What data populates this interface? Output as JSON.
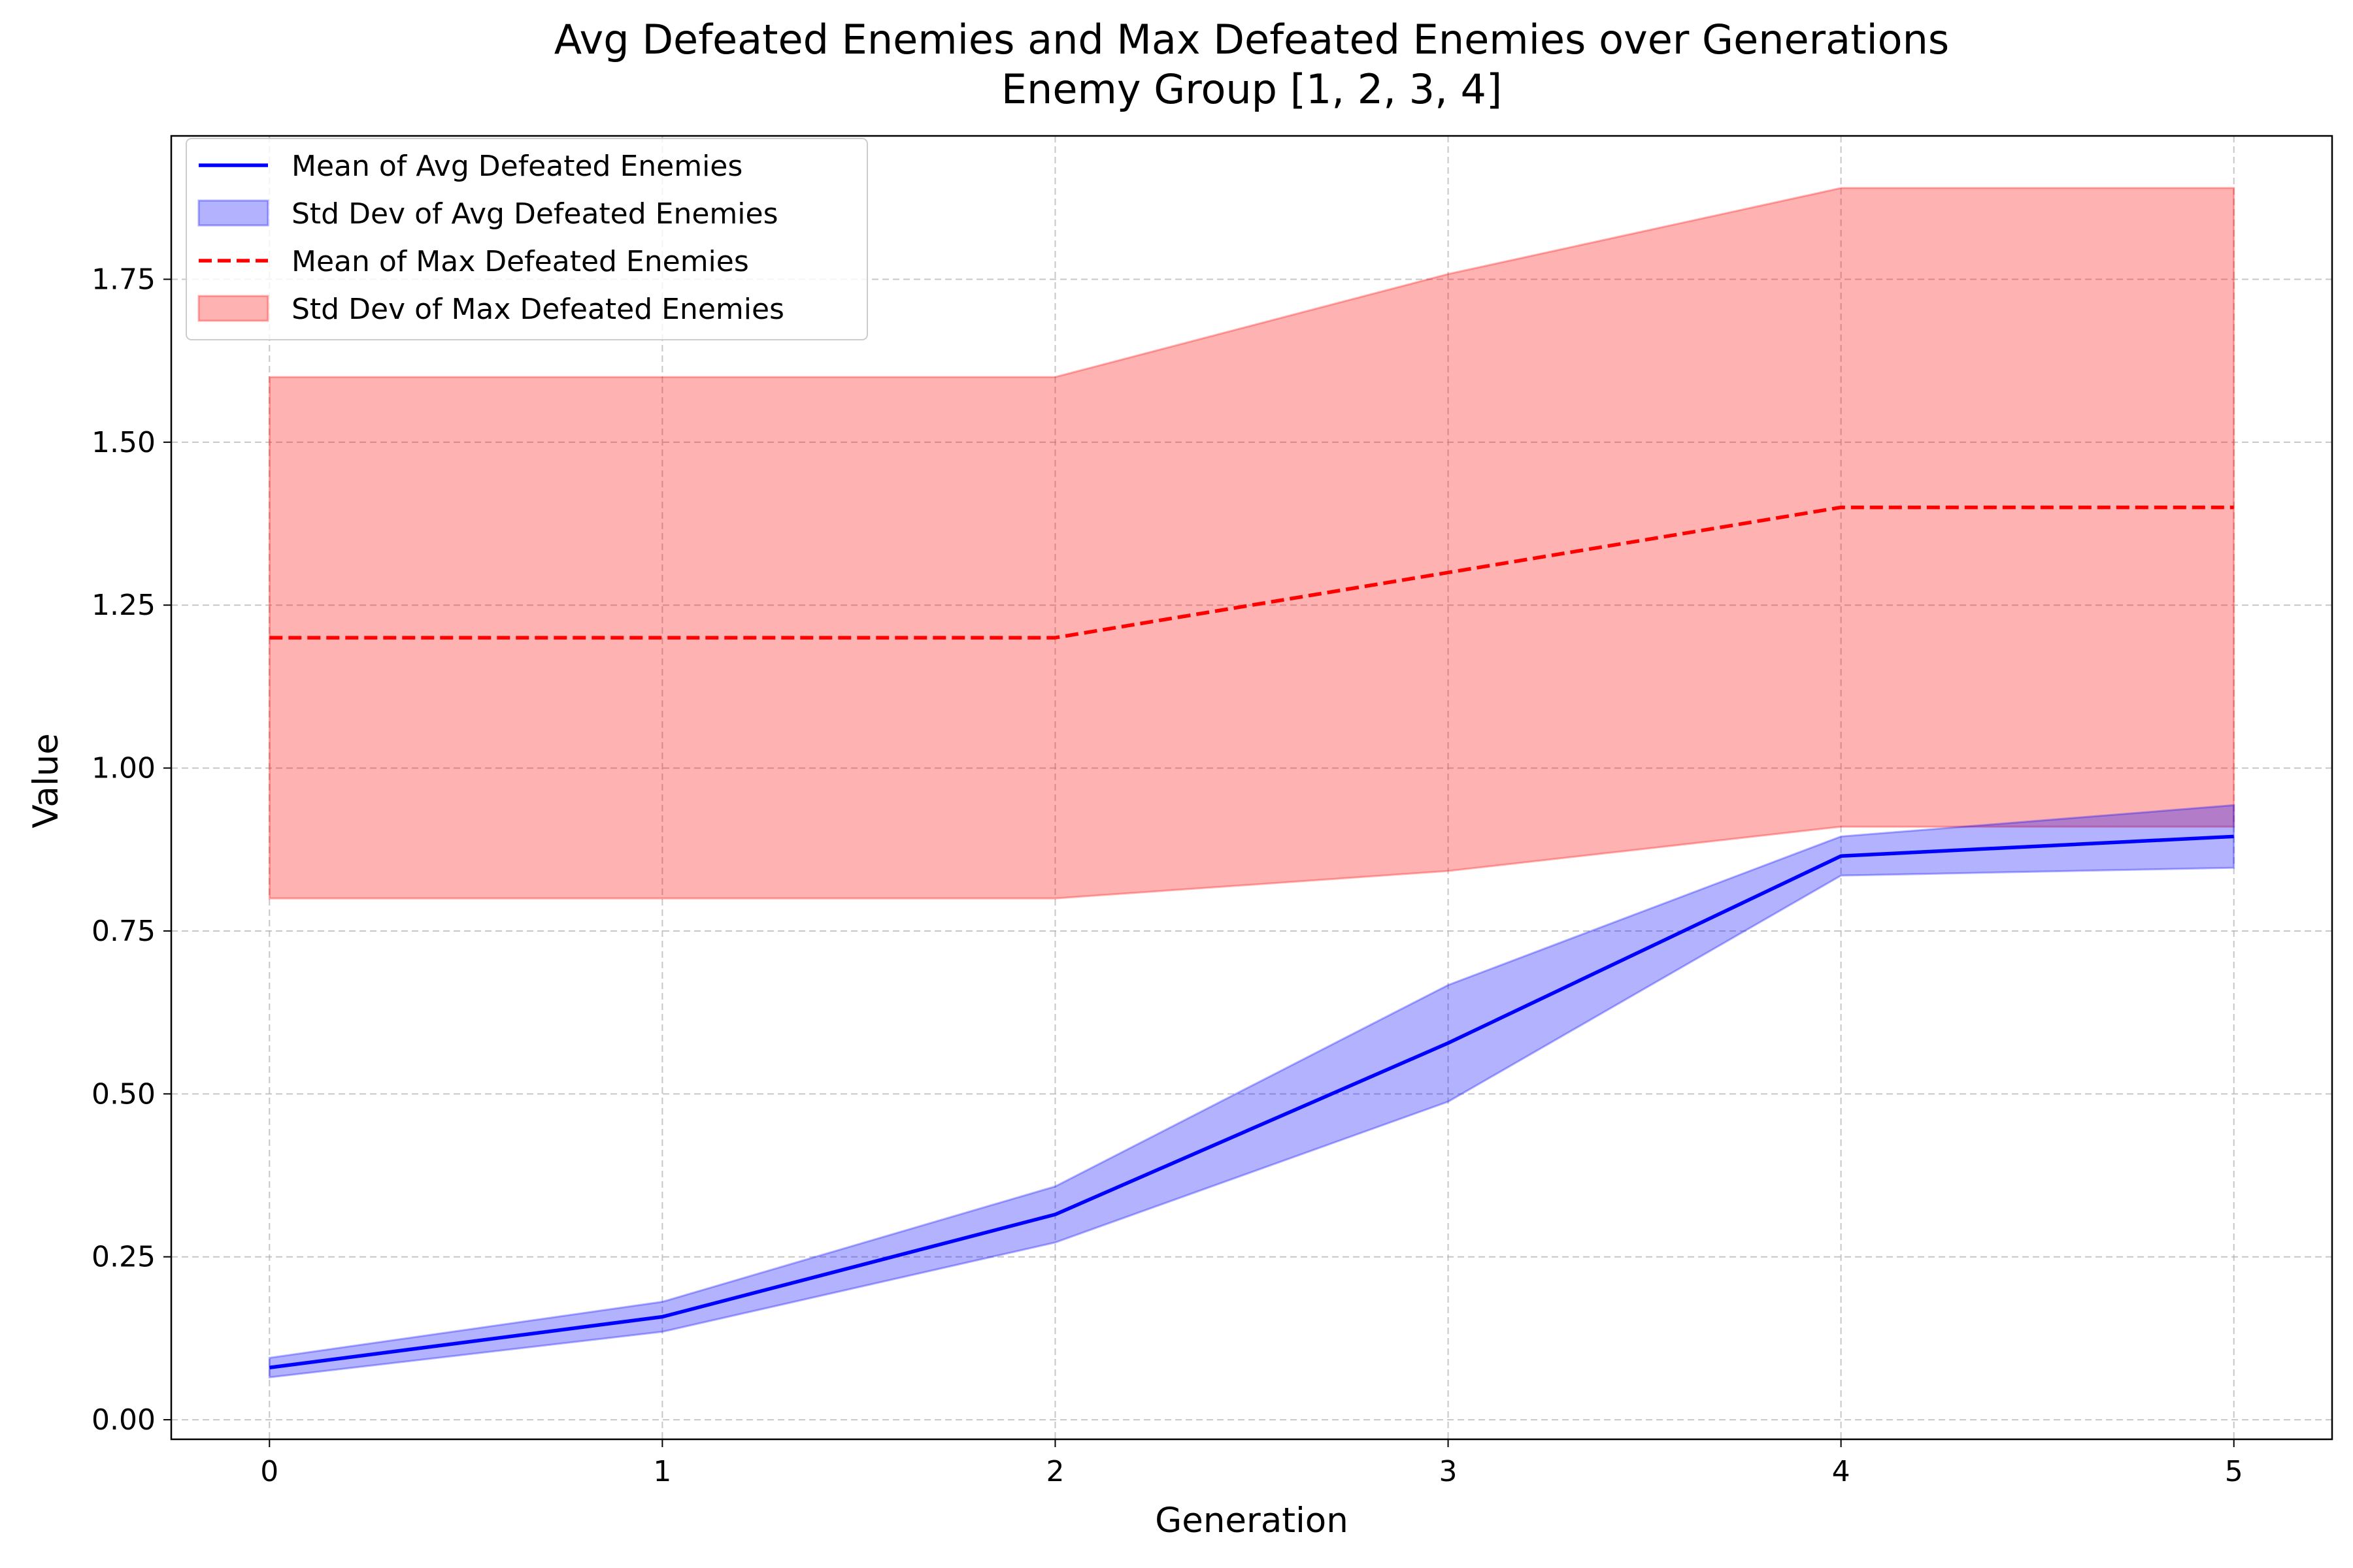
{
  "chart_data": {
    "type": "line",
    "title": [
      "Avg Defeated Enemies and Max Defeated Enemies over Generations",
      "Enemy Group [1, 2, 3, 4]"
    ],
    "xlabel": "Generation",
    "ylabel": "Value",
    "x": [
      0,
      1,
      2,
      3,
      4,
      5
    ],
    "xticks": [
      "0",
      "1",
      "2",
      "3",
      "4",
      "5"
    ],
    "yticks": [
      "0.00",
      "0.25",
      "0.50",
      "0.75",
      "1.00",
      "1.25",
      "1.50",
      "1.75"
    ],
    "xlim": [
      -0.25,
      5.25
    ],
    "ylim": [
      -0.03,
      1.97
    ],
    "grid": true,
    "legend_position": "upper-left",
    "series": [
      {
        "name": "Mean of Avg Defeated Enemies",
        "kind": "line",
        "color": "#0000ff",
        "style": "solid",
        "values": [
          0.08,
          0.158,
          0.315,
          0.578,
          0.865,
          0.895
        ]
      },
      {
        "name": "Std Dev of Avg Defeated Enemies",
        "kind": "band",
        "color": "#0000ff",
        "lower": [
          0.065,
          0.135,
          0.272,
          0.488,
          0.835,
          0.847
        ],
        "upper": [
          0.095,
          0.181,
          0.358,
          0.667,
          0.895,
          0.943
        ]
      },
      {
        "name": "Mean of Max Defeated Enemies",
        "kind": "line",
        "color": "#ff0000",
        "style": "dashed",
        "values": [
          1.2,
          1.2,
          1.2,
          1.3,
          1.4,
          1.4
        ]
      },
      {
        "name": "Std Dev of Max Defeated Enemies",
        "kind": "band",
        "color": "#ff0000",
        "lower": [
          0.8,
          0.8,
          0.8,
          0.842,
          0.91,
          0.91
        ],
        "upper": [
          1.6,
          1.6,
          1.6,
          1.758,
          1.89,
          1.89
        ]
      }
    ]
  }
}
